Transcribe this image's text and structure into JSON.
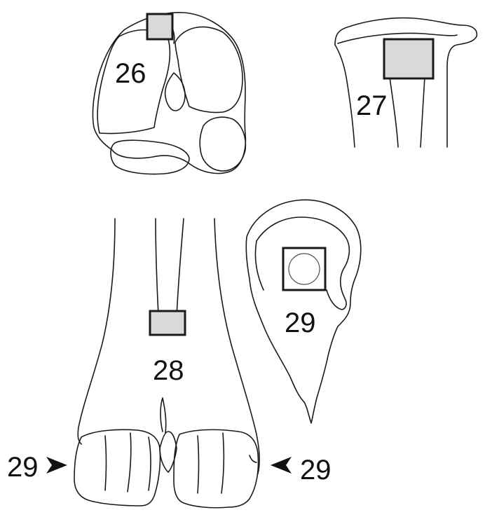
{
  "labels": {
    "tarsus_top": "26",
    "metatarsus_top": "27",
    "metatarsus_front": "28",
    "hoof_section": "29",
    "arrow_left": "29",
    "arrow_right": "29"
  },
  "colors": {
    "line": "#1a1a1a",
    "box_fill": "#d9d9d9",
    "background": "#ffffff"
  },
  "icons": {
    "arrow_left": "arrowhead-right",
    "arrow_right": "arrowhead-left"
  }
}
